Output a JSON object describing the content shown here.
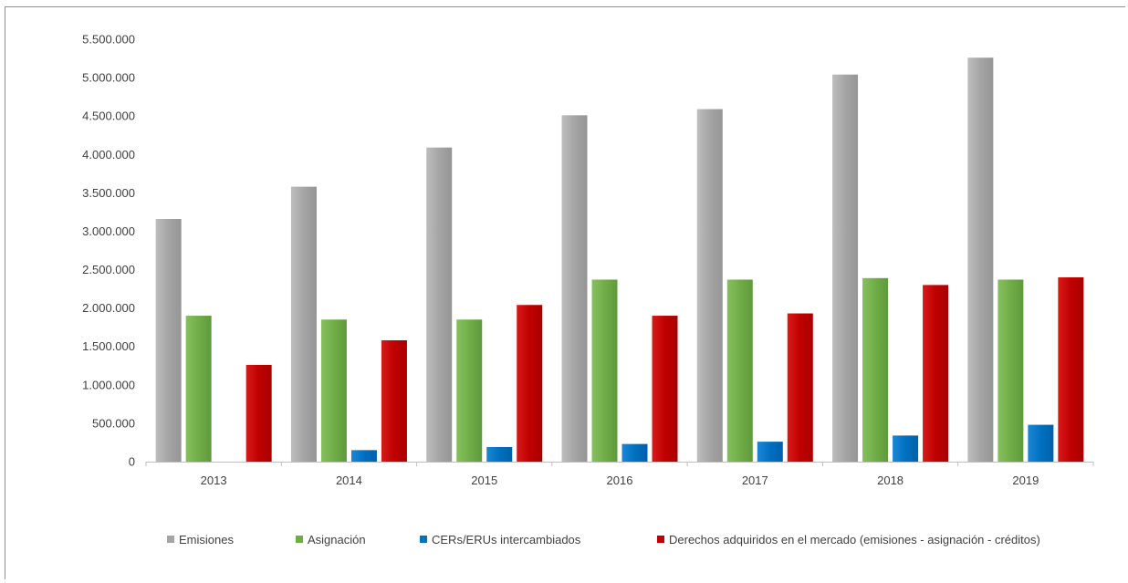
{
  "chart_data": {
    "type": "bar",
    "title": "",
    "xlabel": "",
    "ylabel": "",
    "categories": [
      "2013",
      "2014",
      "2015",
      "2016",
      "2017",
      "2018",
      "2019"
    ],
    "ylim": [
      0,
      5500000
    ],
    "y_ticks": [
      0,
      500000,
      1000000,
      1500000,
      2000000,
      2500000,
      3000000,
      3500000,
      4000000,
      4500000,
      5000000,
      5500000
    ],
    "y_tick_labels": [
      "0",
      "500.000",
      "1.000.000",
      "1.500.000",
      "2.000.000",
      "2.500.000",
      "3.000.000",
      "3.500.000",
      "4.000.000",
      "4.500.000",
      "5.000.000",
      "5.500.000"
    ],
    "grid": false,
    "legend_position": "bottom",
    "series": [
      {
        "name": "Emisiones",
        "color": "#a5a5a5",
        "values": [
          3160000,
          3580000,
          4090000,
          4510000,
          4590000,
          5040000,
          5260000
        ]
      },
      {
        "name": "Asignación",
        "color": "#70ad47",
        "values": [
          1900000,
          1850000,
          1850000,
          2370000,
          2370000,
          2390000,
          2370000
        ]
      },
      {
        "name": "CERs/ERUs intercambiados",
        "color": "#0070c0",
        "values": [
          0,
          150000,
          190000,
          230000,
          260000,
          340000,
          480000
        ]
      },
      {
        "name": "Derechos adquiridos en el mercado (emisiones - asignación - créditos)",
        "color": "#c00000",
        "values": [
          1260000,
          1580000,
          2040000,
          1900000,
          1930000,
          2300000,
          2400000
        ]
      }
    ]
  }
}
